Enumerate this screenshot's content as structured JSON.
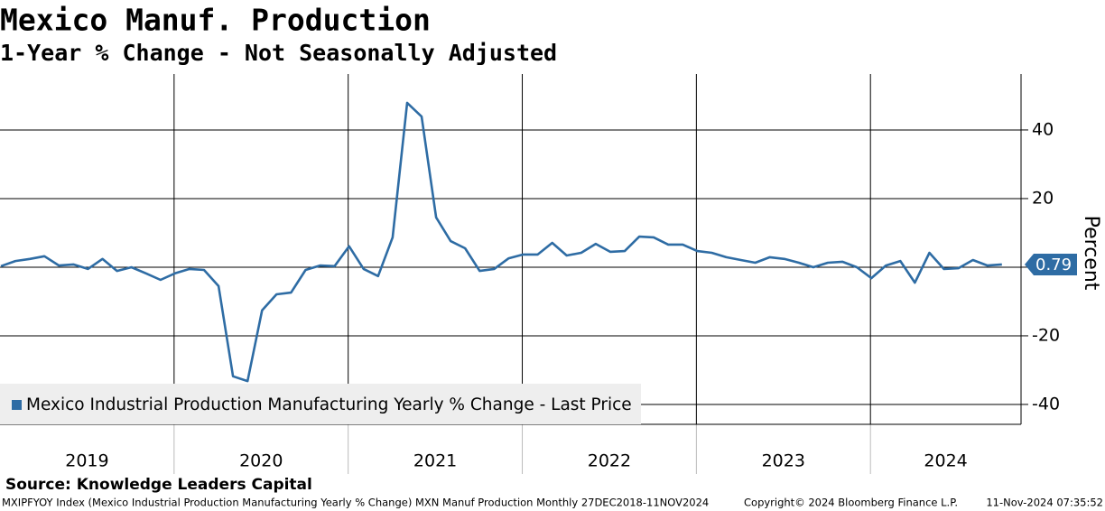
{
  "chart_data": {
    "type": "line",
    "title": "Mexico Manuf. Production",
    "subtitle": "1-Year % Change - Not Seasonally Adjusted",
    "y_label": "Percent",
    "categories": [
      "2019",
      null,
      null,
      null,
      null,
      null,
      null,
      null,
      null,
      null,
      null,
      null,
      "2020",
      null,
      null,
      null,
      null,
      null,
      null,
      null,
      null,
      null,
      null,
      null,
      "2021",
      null,
      null,
      null,
      null,
      null,
      null,
      null,
      null,
      null,
      null,
      null,
      "2022",
      null,
      null,
      null,
      null,
      null,
      null,
      null,
      null,
      null,
      null,
      null,
      "2023",
      null,
      null,
      null,
      null,
      null,
      null,
      null,
      null,
      null,
      null,
      null,
      "2024",
      null,
      null,
      null,
      null,
      null,
      null,
      null,
      null,
      null
    ],
    "series": [
      {
        "name": "Mexico Industrial Production Manufacturing Yearly % Change - Last Price",
        "color": "#2e6ca4",
        "values": [
          0.3,
          1.8,
          2.4,
          3.2,
          0.5,
          0.8,
          -0.5,
          2.4,
          -1.1,
          0,
          -1.8,
          -3.7,
          -1.8,
          -0.5,
          -0.8,
          -5.5,
          -31.8,
          -33.2,
          -12.6,
          -7.9,
          -7.4,
          -0.8,
          0.5,
          0.3,
          6.1,
          -0.5,
          -2.6,
          8.7,
          47.9,
          43.9,
          14.5,
          7.6,
          5.5,
          -1.1,
          -0.5,
          2.6,
          3.7,
          3.7,
          7.1,
          3.4,
          4.2,
          6.8,
          4.5,
          4.7,
          8.9,
          8.7,
          6.6,
          6.6,
          4.7,
          4.2,
          2.9,
          2.1,
          1.3,
          2.9,
          2.4,
          1.3,
          0,
          1.3,
          1.6,
          0,
          -3.2,
          0.5,
          1.8,
          -4.5,
          4.2,
          -0.5,
          -0.3,
          2.1,
          0.5,
          0.79
        ]
      }
    ],
    "ylim": [
      -45.8,
      56.3
    ],
    "yticks": [
      -40,
      -20,
      0,
      20,
      40
    ],
    "grid": true,
    "legend": "bottom-left"
  },
  "footer": {
    "source": "Source: Knowledge Leaders Capital",
    "description": "MXIPFYOY Index (Mexico Industrial Production Manufacturing Yearly % Change) MXN Manuf Production  Monthly 27DEC2018-11NOV2024",
    "copyright": "Copyright© 2024 Bloomberg Finance L.P.",
    "timestamp": "11-Nov-2024 07:35:52"
  }
}
